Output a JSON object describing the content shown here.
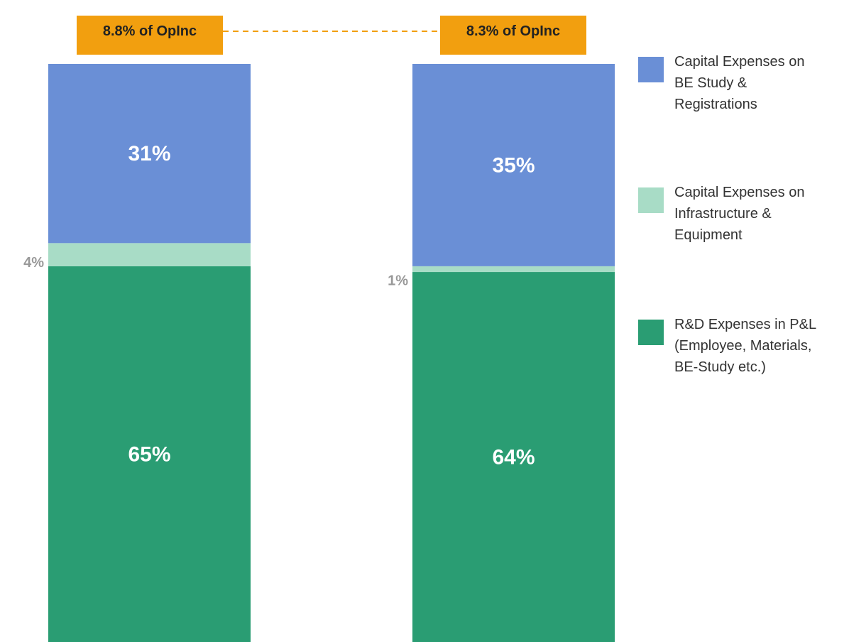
{
  "chart_data": {
    "type": "stacked_bar",
    "categories": [
      null,
      null
    ],
    "annotations": [
      "8.8% of OpInc",
      "8.3% of OpInc"
    ],
    "annotation_color": "#f29f0f",
    "ylim": [
      0,
      100
    ],
    "series": [
      {
        "name": "R&D Expenses in P&L\n(Employee, Materials,\nBE-Study etc.)",
        "color": "#2a9d73",
        "values": [
          65,
          64
        ],
        "value_labels": [
          "65%",
          "64%"
        ]
      },
      {
        "name": "Capital Expenses on\nInfrastructure &\nEquipment",
        "color": "#a8dcc6",
        "values": [
          4,
          1
        ],
        "value_labels": [
          "4%",
          "1%"
        ]
      },
      {
        "name": "Capital Expenses on\nBE Study &\nRegistrations",
        "color": "#6a8fd6",
        "values": [
          31,
          35
        ],
        "value_labels": [
          "31%",
          "35%"
        ]
      }
    ]
  }
}
